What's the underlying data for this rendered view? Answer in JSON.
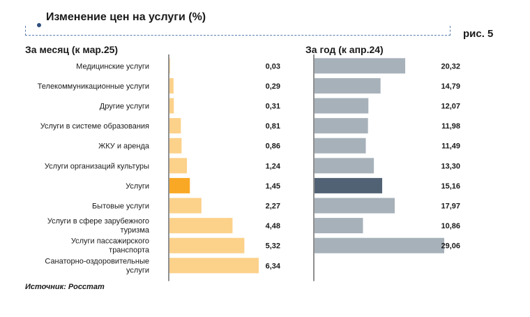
{
  "header": {
    "title": "Изменение цен на услуги (%)",
    "figure_label": "рис. 5"
  },
  "source": "Источник: Росстат",
  "colors": {
    "month_bar": "#fcd18a",
    "month_highlight": "#f9a825",
    "year_bar": "#a7b1ba",
    "year_highlight": "#526275",
    "axis": "#222222"
  },
  "chart_data": [
    {
      "type": "bar",
      "orientation": "horizontal",
      "title": "За месяц (к мар.25)",
      "categories": [
        "Медицинские услуги",
        "Телекоммуникационные услуги",
        "Другие услуги",
        "Услуги в системе образования",
        "ЖКУ и аренда",
        "Услуги организаций культуры",
        "Услуги",
        "Бытовые услуги",
        "Услуги в сфере зарубежного туризма",
        "Услуги пассажирского транспорта",
        "Санаторно-оздоровительные услуги"
      ],
      "values": [
        0.03,
        0.29,
        0.31,
        0.81,
        0.86,
        1.24,
        1.45,
        2.27,
        4.48,
        5.32,
        6.34
      ],
      "value_labels": [
        "0,03",
        "0,29",
        "0,31",
        "0,81",
        "0,86",
        "1,24",
        "1,45",
        "2,27",
        "4,48",
        "5,32",
        "6,34"
      ],
      "highlight_index": 6,
      "xlim": [
        0,
        6.34
      ],
      "grid": false
    },
    {
      "type": "bar",
      "orientation": "horizontal",
      "title": "За год (к апр.24)",
      "categories": [
        "Медицинские услуги",
        "Телекоммуникационные услуги",
        "Другие услуги",
        "Услуги в системе образования",
        "ЖКУ и аренда",
        "Услуги организаций культуры",
        "Услуги",
        "Бытовые услуги",
        "Услуги в сфере зарубежного туризма",
        "Услуги пассажирского транспорта",
        "Санаторно-оздоровительные услуги"
      ],
      "values": [
        20.32,
        14.79,
        12.07,
        11.98,
        11.49,
        13.3,
        15.16,
        17.97,
        10.86,
        29.06,
        null
      ],
      "value_labels": [
        "20,32",
        "14,79",
        "12,07",
        "11,98",
        "11,49",
        "13,30",
        "15,16",
        "17,97",
        "10,86",
        "29,06",
        ""
      ],
      "highlight_index": 6,
      "xlim": [
        0,
        29.06
      ],
      "grid": false
    }
  ]
}
